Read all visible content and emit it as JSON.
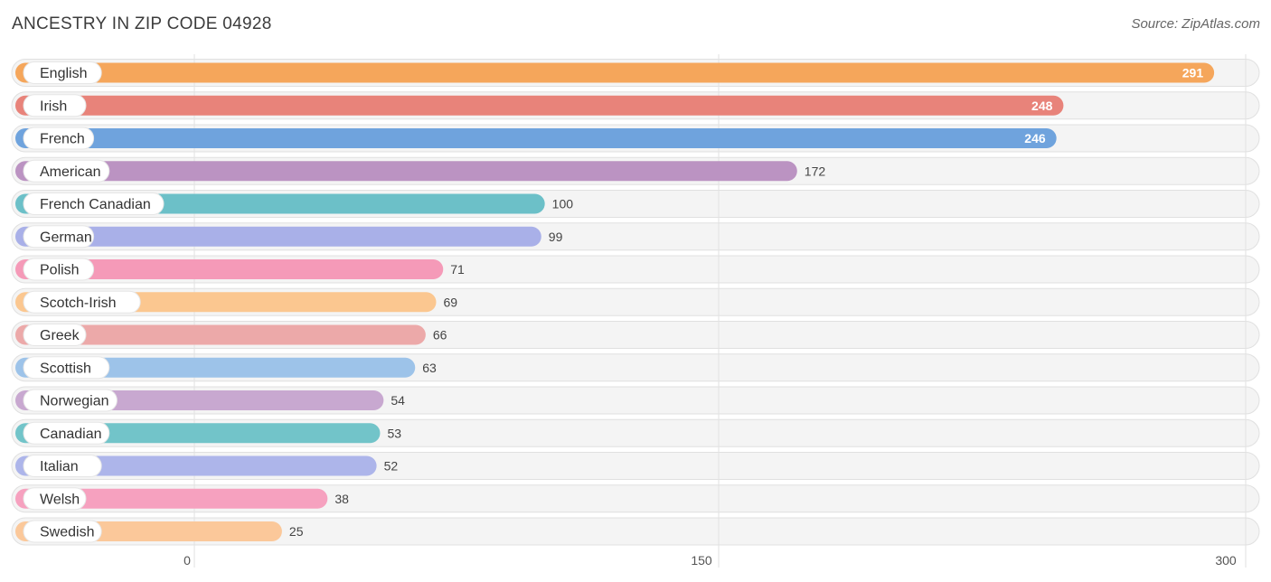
{
  "header": {
    "title": "ANCESTRY IN ZIP CODE 04928",
    "source": "Source: ZipAtlas.com"
  },
  "chart_data": {
    "type": "bar",
    "orientation": "horizontal",
    "title": "ANCESTRY IN ZIP CODE 04928",
    "categories": [
      "English",
      "Irish",
      "French",
      "American",
      "French Canadian",
      "German",
      "Polish",
      "Scotch-Irish",
      "Greek",
      "Scottish",
      "Norwegian",
      "Canadian",
      "Italian",
      "Welsh",
      "Swedish"
    ],
    "values": [
      291,
      248,
      246,
      172,
      100,
      99,
      71,
      69,
      66,
      63,
      54,
      53,
      52,
      38,
      25
    ],
    "colors": [
      "#f5a65b",
      "#e8837a",
      "#6fa3dd",
      "#bb93c2",
      "#6cc0c8",
      "#a9b0e8",
      "#f59ab8",
      "#fbc790",
      "#eca9a9",
      "#9dc3e9",
      "#c8a8d0",
      "#72c4c9",
      "#adb5ea",
      "#f6a1bf",
      "#fbc89a"
    ],
    "xlim": [
      0,
      300
    ],
    "xticks": [
      0,
      150,
      300
    ],
    "grid": true
  }
}
